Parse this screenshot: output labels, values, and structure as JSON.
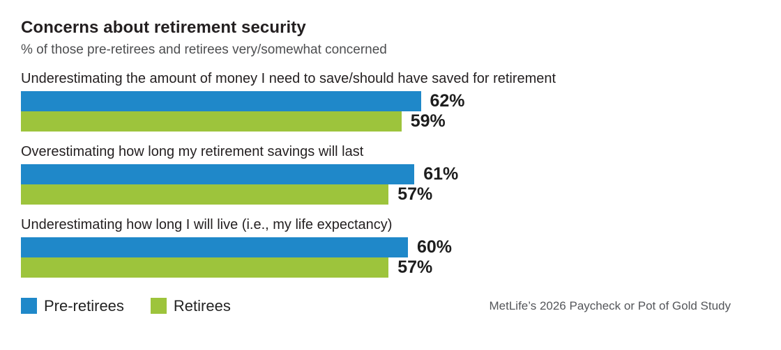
{
  "chart_data": {
    "type": "bar",
    "orientation": "horizontal",
    "title": "Concerns about retirement security",
    "subtitle": "% of those pre-retirees and retirees very/somewhat concerned",
    "categories": [
      "Underestimating the amount of money I need to save/should have saved for retirement",
      "Overestimating how long my retirement savings will last",
      "Underestimating how long I will live (i.e., my life expectancy)"
    ],
    "series": [
      {
        "name": "Pre-retirees",
        "color": "#1f88c9",
        "values": [
          62,
          61,
          60
        ]
      },
      {
        "name": "Retirees",
        "color": "#9dc43c",
        "values": [
          59,
          57,
          57
        ]
      }
    ],
    "value_suffix": "%",
    "xlim": [
      0,
      100
    ],
    "grid": false,
    "legend_position": "bottom-left",
    "source": "MetLife’s 2026 Paycheck or Pot of Gold Study"
  },
  "colors": {
    "pre_retirees": "#1f88c9",
    "retirees": "#9dc43c",
    "title_text": "#231f20",
    "subtitle_text": "#4d4e50",
    "source_text": "#54565a",
    "background": "#ffffff"
  }
}
